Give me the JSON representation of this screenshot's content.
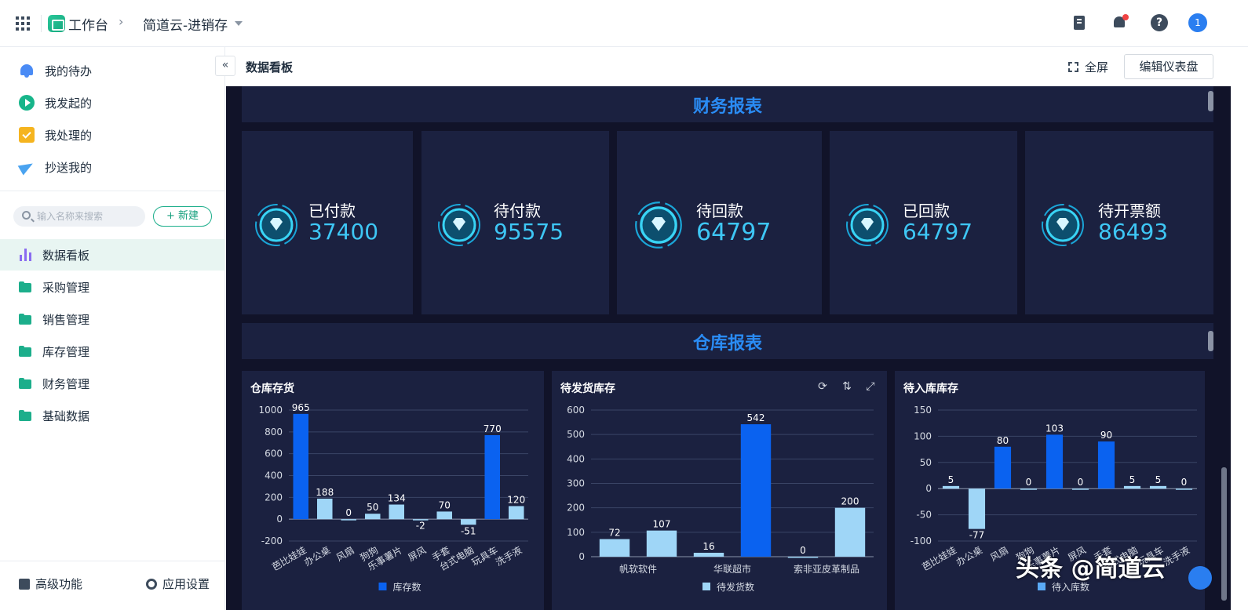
{
  "topbar": {
    "workbench": "工作台",
    "app_name": "简道云-进销存",
    "avatar": "1",
    "help": "?"
  },
  "sidebar": {
    "todo": [
      {
        "label": "我的待办",
        "icon": "bell-icon"
      },
      {
        "label": "我发起的",
        "icon": "play-icon"
      },
      {
        "label": "我处理的",
        "icon": "inbox-check-icon"
      },
      {
        "label": "抄送我的",
        "icon": "send-icon"
      }
    ],
    "search_placeholder": "输入名称来搜索",
    "new_label": "+ 新建",
    "nav": [
      {
        "label": "数据看板",
        "active": true
      },
      {
        "label": "采购管理"
      },
      {
        "label": "销售管理"
      },
      {
        "label": "库存管理"
      },
      {
        "label": "财务管理"
      },
      {
        "label": "基础数据"
      }
    ],
    "footer": {
      "advanced": "高级功能",
      "settings": "应用设置"
    }
  },
  "header": {
    "collapse": "«",
    "title": "数据看板",
    "fullscreen": "全屏",
    "edit": "编辑仪表盘"
  },
  "finance": {
    "title": "财务报表",
    "kpis": [
      {
        "label": "已付款",
        "value": "37400"
      },
      {
        "label": "待付款",
        "value": "95575"
      },
      {
        "label": "待回款",
        "value": "64797"
      },
      {
        "label": "已回款",
        "value": "64797"
      },
      {
        "label": "待开票额",
        "value": "86493"
      }
    ]
  },
  "warehouse": {
    "title": "仓库报表"
  },
  "chart_data": [
    {
      "type": "bar",
      "title": "仓库存货",
      "categories": [
        "芭比娃娃",
        "办公桌",
        "风扇",
        "狗狗",
        "乐事薯片",
        "屏风",
        "手套",
        "台式电脑",
        "玩具车",
        "洗手液"
      ],
      "series": [
        {
          "name": "库存数",
          "values": [
            965,
            188,
            0,
            50,
            134,
            -2,
            70,
            -51,
            770,
            120
          ]
        }
      ],
      "ylim": [
        -200,
        1000
      ],
      "yticks": [
        -200,
        0,
        200,
        400,
        600,
        800,
        1000
      ],
      "legend": "bottom",
      "colors": [
        "#0a62f0",
        "#9fd6f7"
      ]
    },
    {
      "type": "bar",
      "title": "待发货库存",
      "categories": [
        "帆软软件",
        "",
        "华联超市",
        "",
        "索非亚皮革制品",
        ""
      ],
      "series": [
        {
          "name": "待发货数",
          "values": [
            72,
            107,
            16,
            542,
            0,
            200
          ]
        }
      ],
      "ylim": [
        0,
        600
      ],
      "yticks": [
        0,
        100,
        200,
        300,
        400,
        500,
        600
      ],
      "legend": "bottom",
      "colors": [
        "#0a62f0",
        "#9fd6f7"
      ]
    },
    {
      "type": "bar",
      "title": "待入库库存",
      "categories": [
        "芭比娃娃",
        "办公桌",
        "风扇",
        "狗狗",
        "乐事薯片",
        "屏风",
        "手套",
        "台式电脑",
        "玩具车",
        "洗手液"
      ],
      "series": [
        {
          "name": "待入库数",
          "values": [
            5,
            -77,
            80,
            0,
            103,
            0,
            90,
            5,
            5,
            0
          ]
        }
      ],
      "ylim": [
        -100,
        150
      ],
      "yticks": [
        -100,
        -50,
        0,
        50,
        100,
        150
      ],
      "legend": "bottom",
      "colors": [
        "#0a62f0",
        "#9fd6f7"
      ]
    }
  ],
  "watermark": "头条 @简道云"
}
